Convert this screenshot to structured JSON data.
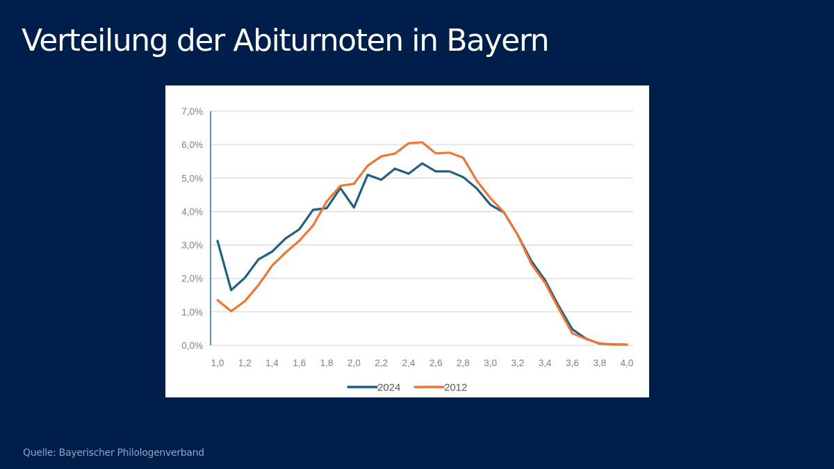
{
  "slide": {
    "title": "Verteilung der Abiturnoten in Bayern",
    "source": "Quelle: Bayerischer Philologenverband",
    "background_color": "#001e4a"
  },
  "chart_data": {
    "type": "line",
    "title": "",
    "xlabel": "",
    "ylabel": "",
    "x": [
      1.0,
      1.1,
      1.2,
      1.3,
      1.4,
      1.5,
      1.6,
      1.7,
      1.8,
      1.9,
      2.0,
      2.1,
      2.2,
      2.3,
      2.4,
      2.5,
      2.6,
      2.7,
      2.8,
      2.9,
      3.0,
      3.1,
      3.2,
      3.3,
      3.4,
      3.5,
      3.6,
      3.7,
      3.8,
      3.9,
      4.0
    ],
    "xlim": [
      1.0,
      4.0
    ],
    "ylim": [
      0,
      7
    ],
    "y_unit": "%",
    "x_tick_values": [
      1.0,
      1.2,
      1.4,
      1.6,
      1.8,
      2.0,
      2.2,
      2.4,
      2.6,
      2.8,
      3.0,
      3.2,
      3.4,
      3.6,
      3.8,
      4.0
    ],
    "x_tick_labels": [
      "1,0",
      "1,2",
      "1,4",
      "1,6",
      "1,8",
      "2,0",
      "2,2",
      "2,4",
      "2,6",
      "2,8",
      "3,0",
      "3,2",
      "3,4",
      "3,6",
      "3,8",
      "4,0"
    ],
    "y_tick_values": [
      0,
      1,
      2,
      3,
      4,
      5,
      6,
      7
    ],
    "y_tick_labels": [
      "0,0%",
      "1,0%",
      "2,0%",
      "3,0%",
      "4,0%",
      "5,0%",
      "6,0%",
      "7,0%"
    ],
    "grid": "horizontal",
    "legend_position": "bottom-center",
    "series": [
      {
        "name": "2024",
        "color": "#1f5f82",
        "values": [
          3.12,
          1.65,
          2.02,
          2.57,
          2.8,
          3.2,
          3.47,
          4.05,
          4.1,
          4.7,
          4.12,
          5.1,
          4.95,
          5.28,
          5.13,
          5.44,
          5.2,
          5.2,
          5.03,
          4.69,
          4.2,
          3.97,
          3.3,
          2.52,
          1.95,
          1.18,
          0.48,
          0.2,
          0.05,
          0.03,
          0.02
        ]
      },
      {
        "name": "2012",
        "color": "#ec7632",
        "values": [
          1.35,
          1.02,
          1.32,
          1.8,
          2.38,
          2.78,
          3.13,
          3.58,
          4.3,
          4.77,
          4.83,
          5.37,
          5.65,
          5.73,
          6.04,
          6.07,
          5.74,
          5.76,
          5.61,
          4.92,
          4.4,
          3.97,
          3.3,
          2.43,
          1.87,
          1.1,
          0.36,
          0.19,
          0.06,
          0.02,
          0.02
        ]
      }
    ]
  }
}
